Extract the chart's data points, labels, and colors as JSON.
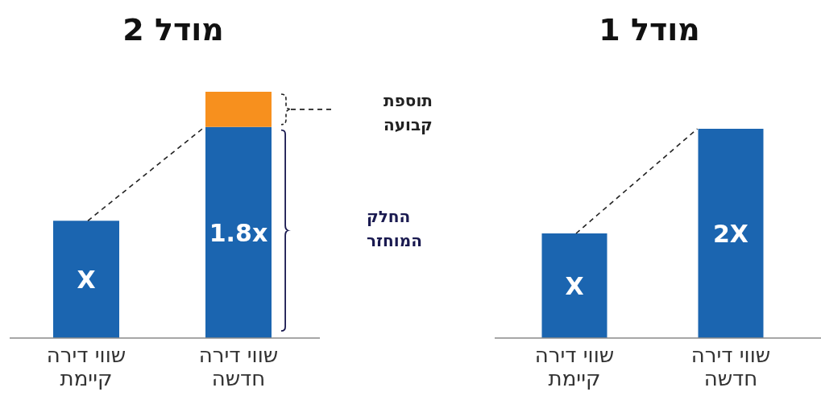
{
  "chart_data": [
    {
      "type": "bar",
      "title": "מודל 1",
      "categories": [
        "שווי דירה קיימת",
        "שווי דירה חדשה"
      ],
      "series": [
        {
          "color": "#1b65b0",
          "values": [
            1,
            2
          ],
          "value_labels": [
            "X",
            "2X"
          ]
        }
      ]
    },
    {
      "type": "bar",
      "title": "מודל 2",
      "stacked": true,
      "categories": [
        "שווי דירה קיימת",
        "שווי דירה חדשה"
      ],
      "series": [
        {
          "color": "#1b65b0",
          "values": [
            1,
            1.8
          ],
          "value_labels": [
            "X",
            "1.8x"
          ]
        },
        {
          "color": "#f7901e",
          "values": [
            null,
            0.3
          ],
          "value_labels": [
            null,
            null
          ]
        }
      ],
      "annotations": [
        "תוספת קבועה",
        "החלק המוחזר"
      ]
    }
  ]
}
